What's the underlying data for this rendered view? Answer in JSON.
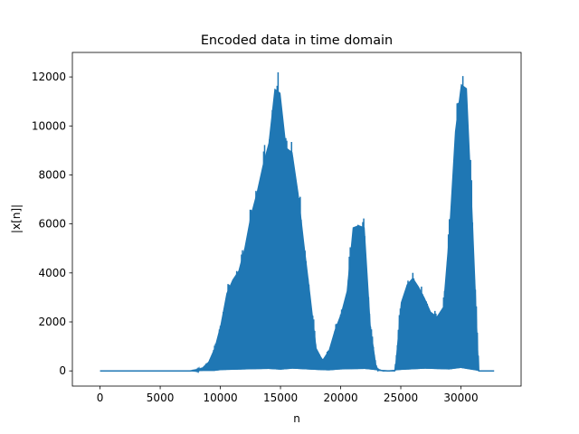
{
  "chart_data": {
    "type": "area",
    "title": "Encoded data in time domain",
    "xlabel": "n",
    "ylabel": "|x[n]|",
    "xlim": [
      -2300,
      35000
    ],
    "ylim": [
      -620,
      13000
    ],
    "xticks": [
      0,
      5000,
      10000,
      15000,
      20000,
      25000,
      30000
    ],
    "yticks": [
      0,
      2000,
      4000,
      6000,
      8000,
      10000,
      12000
    ],
    "grid": false,
    "color": "#1f77b4",
    "series": [
      {
        "description_envelope_upper": true,
        "x": [
          0,
          7500,
          8000,
          8500,
          9000,
          9500,
          10000,
          10500,
          11000,
          11500,
          12000,
          12500,
          13000,
          13500,
          14000,
          14500,
          15000,
          15500,
          16000,
          16500,
          17000,
          17500,
          18000,
          18500,
          19000,
          19500,
          20000,
          20500,
          21000,
          21500,
          22000,
          22500,
          23000,
          23500,
          24000,
          24500,
          25000,
          25500,
          26000,
          26500,
          27000,
          27500,
          28000,
          28500,
          29000,
          29500,
          30000,
          30500,
          31000,
          31500,
          32000,
          32768
        ],
        "values": [
          0,
          0,
          50,
          150,
          400,
          1000,
          2000,
          3400,
          4000,
          4400,
          5400,
          6800,
          7800,
          9000,
          10000,
          12400,
          12200,
          9800,
          9600,
          7800,
          5500,
          3300,
          1000,
          500,
          900,
          1800,
          2500,
          3500,
          6300,
          6400,
          6300,
          2000,
          100,
          0,
          0,
          0,
          3000,
          3800,
          4100,
          3700,
          3200,
          2600,
          2400,
          2800,
          6000,
          10500,
          12600,
          12400,
          6500,
          0,
          0,
          0
        ]
      },
      {
        "description_envelope_lower": true,
        "x": [
          0,
          9500,
          10000,
          12000,
          14000,
          15000,
          16000,
          18000,
          19000,
          20000,
          22000,
          23000,
          24000,
          25000,
          27000,
          29000,
          30000,
          31000,
          31500,
          32768
        ],
        "values": [
          0,
          0,
          30,
          60,
          80,
          50,
          90,
          40,
          20,
          60,
          80,
          30,
          0,
          40,
          90,
          60,
          120,
          40,
          0,
          0
        ]
      }
    ]
  }
}
